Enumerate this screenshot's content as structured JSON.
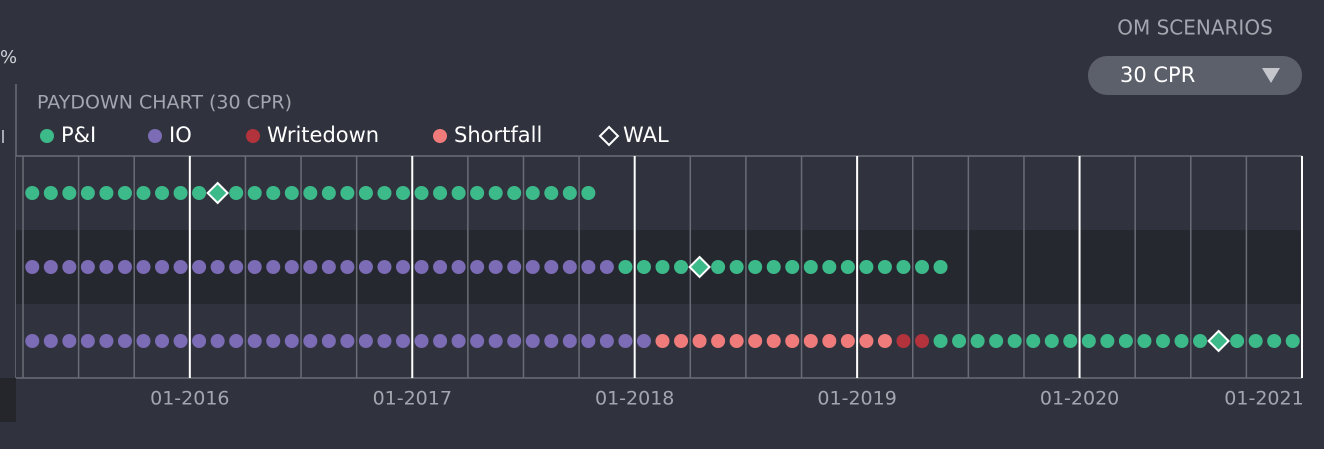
{
  "header": {
    "scenarios_label": "OM SCENARIOS",
    "dropdown": "30 CPR",
    "edge_text": "%"
  },
  "chart": {
    "title": "PAYDOWN CHART (30 CPR)",
    "legend": [
      {
        "name": "P&I",
        "color": "#3dba8a",
        "shape": "dot"
      },
      {
        "name": "IO",
        "color": "#7b6cb5",
        "shape": "dot"
      },
      {
        "name": "Writedown",
        "color": "#b3333c",
        "shape": "dot"
      },
      {
        "name": "Shortfall",
        "color": "#f07b7b",
        "shape": "dot"
      },
      {
        "name": "WAL",
        "color": "#ffffff",
        "shape": "diamond"
      }
    ],
    "xlim": [
      0,
      69
    ],
    "xticks": [
      {
        "value": 9,
        "label": "01-2016"
      },
      {
        "value": 21,
        "label": "01-2017"
      },
      {
        "value": 33,
        "label": "01-2018"
      },
      {
        "value": 45,
        "label": "01-2019"
      },
      {
        "value": 57,
        "label": "01-2020"
      },
      {
        "value": 69,
        "label": "01-2021"
      }
    ],
    "rows": [
      {
        "runs": [
          {
            "status": 0,
            "count": 31
          }
        ],
        "wal": 10
      },
      {
        "runs": [
          {
            "status": 1,
            "count": 32
          },
          {
            "status": 0,
            "count": 18
          }
        ],
        "wal": 36
      },
      {
        "runs": [
          {
            "status": 1,
            "count": 34
          },
          {
            "status": 3,
            "count": 13
          },
          {
            "status": 2,
            "count": 2
          },
          {
            "status": 0,
            "count": 20
          }
        ],
        "wal": 64
      }
    ]
  }
}
